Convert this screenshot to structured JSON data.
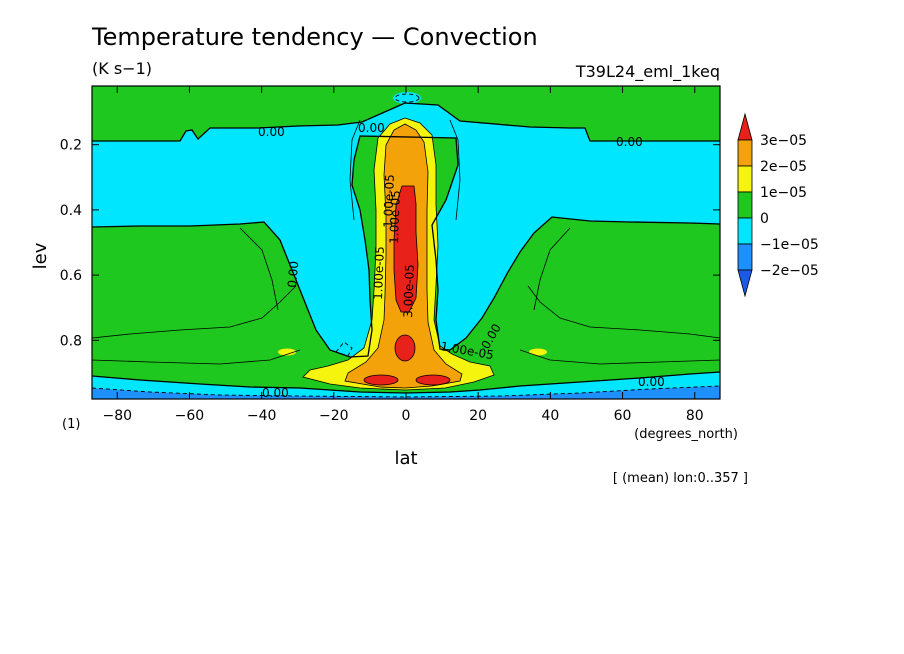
{
  "chart_data": {
    "type": "contour",
    "title": "Temperature tendency — Convection",
    "subtitle": "(K s−1)",
    "experiment": "T39L24_eml_1keq",
    "xlabel": "lat",
    "x_units": "(degrees_north)",
    "ylabel": "lev",
    "y_units": "(1)",
    "xlim": [
      -87,
      87
    ],
    "ylim": [
      0.02,
      0.98
    ],
    "y_inverted": true,
    "x_ticks": [
      "−80",
      "−60",
      "−40",
      "−20",
      "0",
      "20",
      "40",
      "60",
      "80"
    ],
    "x_tick_values": [
      -80,
      -60,
      -40,
      -20,
      0,
      20,
      40,
      60,
      80
    ],
    "y_ticks": [
      "0.2",
      "0.4",
      "0.6",
      "0.8"
    ],
    "y_tick_values": [
      0.2,
      0.4,
      0.6,
      0.8
    ],
    "averaging_note": "[ (mean) lon:0..357 ]",
    "contour_levels": [
      -2e-05,
      -1e-05,
      0,
      1e-05,
      2e-05,
      3e-05
    ],
    "colorbar": {
      "labels": [
        "3e−05",
        "2e−05",
        "1e−05",
        "0",
        "−1e−05",
        "−2e−05"
      ],
      "colors": [
        "#e8211a",
        "#f4a20a",
        "#f4f40e",
        "#1ec81e",
        "#00e6ff",
        "#1e90ff",
        "#1c5ae6"
      ]
    },
    "contour_labels": [
      "0.00",
      "0.00",
      "0.00",
      "0.00",
      "0.00",
      "0.00",
      "0.00",
      "1.00e-05",
      "1.00e-05",
      "1.00e-05",
      "3.00e-05",
      "1.00e-05"
    ],
    "regions": [
      {
        "level": "0 to 1e-05",
        "color": "#1ec81e",
        "description": "background positive weak tendency"
      },
      {
        "level": "-1e-05 to 0",
        "color": "#00e6ff",
        "description": "upper troposphere negative region"
      },
      {
        "level": "1e-05 to 2e-05",
        "color": "#f4f40e",
        "description": "equatorial column"
      },
      {
        "level": "2e-05 to 3e-05",
        "color": "#f4a20a",
        "description": "equatorial column core"
      },
      {
        "level": ">3e-05",
        "color": "#e8211a",
        "description": "equatorial maximum near lev 0.3-0.7"
      }
    ]
  }
}
